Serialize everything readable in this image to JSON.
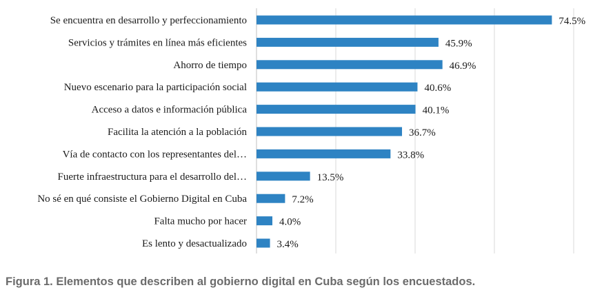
{
  "chart_data": {
    "type": "bar",
    "orientation": "horizontal",
    "categories": [
      "Se encuentra en desarrollo y perfeccionamiento",
      "Servicios y trámites en línea más eficientes",
      "Ahorro de tiempo",
      "Nuevo escenario para la participación social",
      "Acceso a datos e información pública",
      "Facilita la atención a la población",
      "Vía de contacto con los representantes del…",
      "Fuerte infraestructura para el desarrollo del…",
      "No sé en qué consiste el Gobierno Digital en Cuba",
      "Falta mucho por hacer",
      "Es lento y desactualizado"
    ],
    "values": [
      74.5,
      45.9,
      46.9,
      40.6,
      40.1,
      36.7,
      33.8,
      13.5,
      7.2,
      4.0,
      3.4
    ],
    "value_labels": [
      "74.5%",
      "45.9%",
      "46.9%",
      "40.6%",
      "40.1%",
      "36.7%",
      "33.8%",
      "13.5%",
      "7.2%",
      "4.0%",
      "3.4%"
    ],
    "xlim": [
      0,
      80
    ],
    "grid": true,
    "legend": false,
    "colors": {
      "bar": "#2e83c3",
      "grid": "#d9d9d9",
      "axis": "#bfbfbf"
    }
  },
  "caption": "Figura 1. Elementos que describen al gobierno digital en Cuba según los encuestados."
}
